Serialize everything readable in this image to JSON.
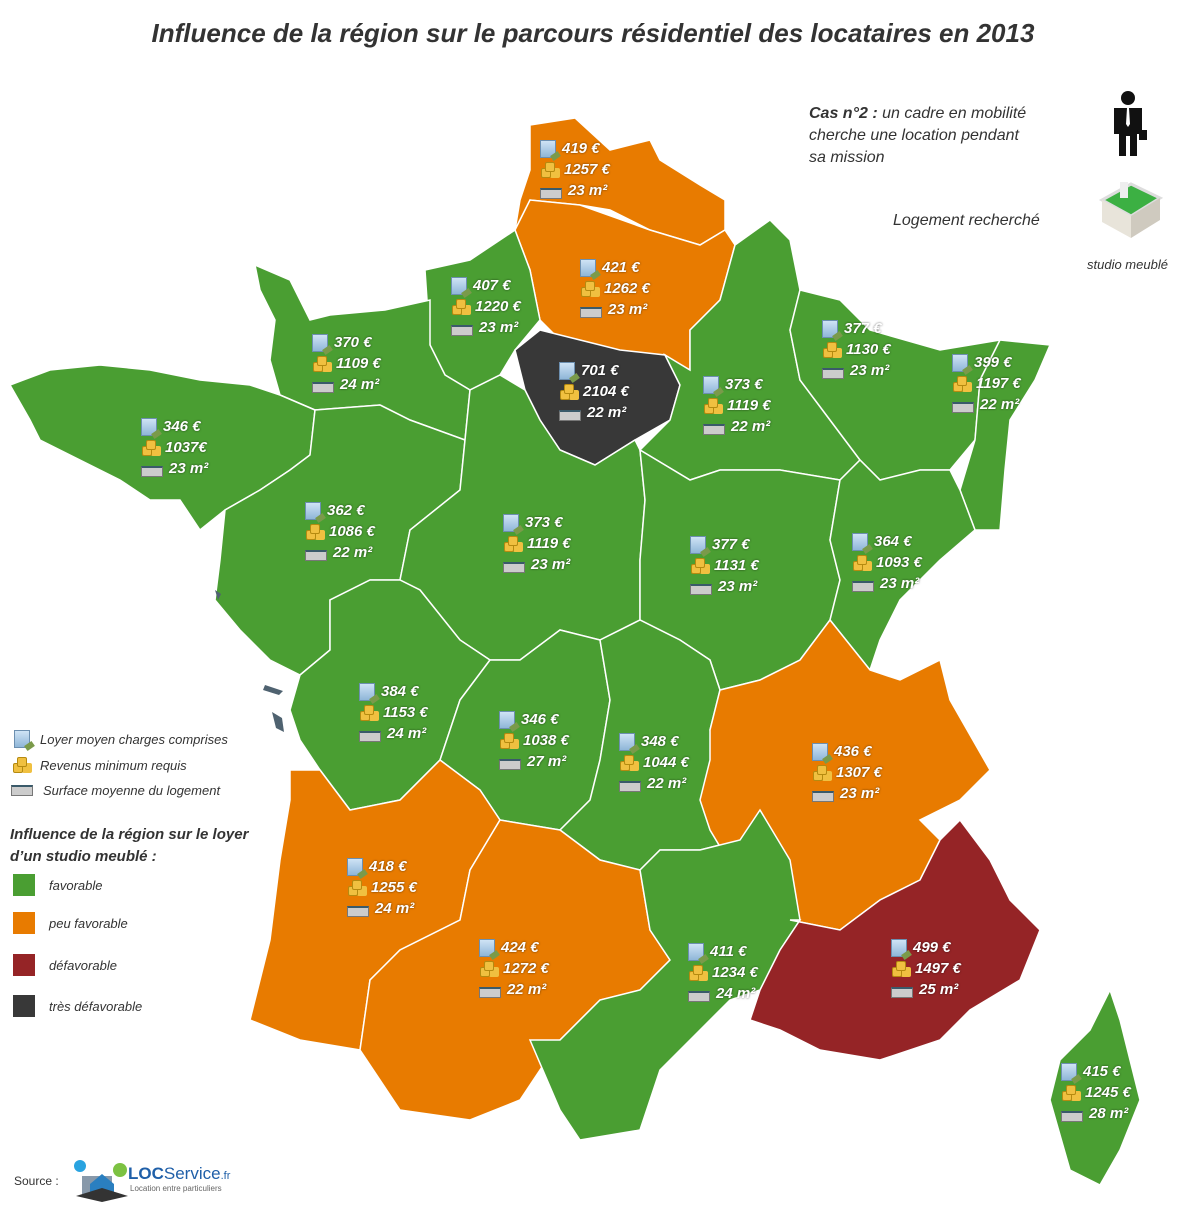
{
  "title": "Influence de la région sur le parcours résidentiel des locataires en 2013",
  "case": {
    "label": "Cas n°2 :",
    "text_line1": "un cadre en mobilité",
    "text_line2": "cherche une location pendant",
    "text_line3": "sa mission",
    "icon": "businessman-icon"
  },
  "housing": {
    "label": "Logement recherché",
    "type": "studio meublé",
    "icon": "studio-3d-icon"
  },
  "legend": {
    "rent": "Loyer moyen charges comprises",
    "income": "Revenus minimum requis",
    "surface": "Surface moyenne du logement",
    "influence_title_line1": "Influence de la région sur le loyer",
    "influence_title_line2": "d’un studio meublé :",
    "levels": [
      {
        "key": "favorable",
        "label": "favorable",
        "color": "#4a9e32"
      },
      {
        "key": "peu",
        "label": "peu favorable",
        "color": "#e87b00"
      },
      {
        "key": "defav",
        "label": "défavorable",
        "color": "#952426"
      },
      {
        "key": "tres",
        "label": "très défavorable",
        "color": "#383838"
      }
    ]
  },
  "regions": [
    {
      "rent": "419 €",
      "income": "1257 €",
      "surface": "23 m²",
      "influence": "peu"
    },
    {
      "rent": "421 €",
      "income": "1262 €",
      "surface": "23 m²",
      "influence": "peu"
    },
    {
      "rent": "407 €",
      "income": "1220 €",
      "surface": "23 m²",
      "influence": "favorable"
    },
    {
      "rent": "370 €",
      "income": "1109 €",
      "surface": "24 m²",
      "influence": "favorable"
    },
    {
      "rent": "346 €",
      "income": "1037€",
      "surface": "23 m²",
      "influence": "favorable"
    },
    {
      "rent": "701 €",
      "income": "2104 €",
      "surface": "22 m²",
      "influence": "tres"
    },
    {
      "rent": "373 €",
      "income": "1119 €",
      "surface": "22 m²",
      "influence": "favorable"
    },
    {
      "rent": "377 €",
      "income": "1130 €",
      "surface": "23 m²",
      "influence": "favorable"
    },
    {
      "rent": "399 €",
      "income": "1197 €",
      "surface": "22 m²",
      "influence": "favorable"
    },
    {
      "rent": "362 €",
      "income": "1086 €",
      "surface": "22 m²",
      "influence": "favorable"
    },
    {
      "rent": "373 €",
      "income": "1119 €",
      "surface": "23 m²",
      "influence": "favorable"
    },
    {
      "rent": "377 €",
      "income": "1131 €",
      "surface": "23 m²",
      "influence": "favorable"
    },
    {
      "rent": "364 €",
      "income": "1093 €",
      "surface": "23 m²",
      "influence": "favorable"
    },
    {
      "rent": "384 €",
      "income": "1153 €",
      "surface": "24 m²",
      "influence": "favorable"
    },
    {
      "rent": "346 €",
      "income": "1038 €",
      "surface": "27 m²",
      "influence": "favorable"
    },
    {
      "rent": "348 €",
      "income": "1044 €",
      "surface": "22 m²",
      "influence": "favorable"
    },
    {
      "rent": "436 €",
      "income": "1307 €",
      "surface": "23 m²",
      "influence": "peu"
    },
    {
      "rent": "418 €",
      "income": "1255 €",
      "surface": "24 m²",
      "influence": "peu"
    },
    {
      "rent": "424 €",
      "income": "1272 €",
      "surface": "22 m²",
      "influence": "peu"
    },
    {
      "rent": "411 €",
      "income": "1234 €",
      "surface": "24 m²",
      "influence": "favorable"
    },
    {
      "rent": "499 €",
      "income": "1497 €",
      "surface": "25 m²",
      "influence": "defav"
    },
    {
      "rent": "415 €",
      "income": "1245 €",
      "surface": "28 m²",
      "influence": "favorable"
    }
  ],
  "source": {
    "label": "Source :",
    "logo_text": "LOCService.fr",
    "logo_tagline": "Location entre particuliers"
  }
}
